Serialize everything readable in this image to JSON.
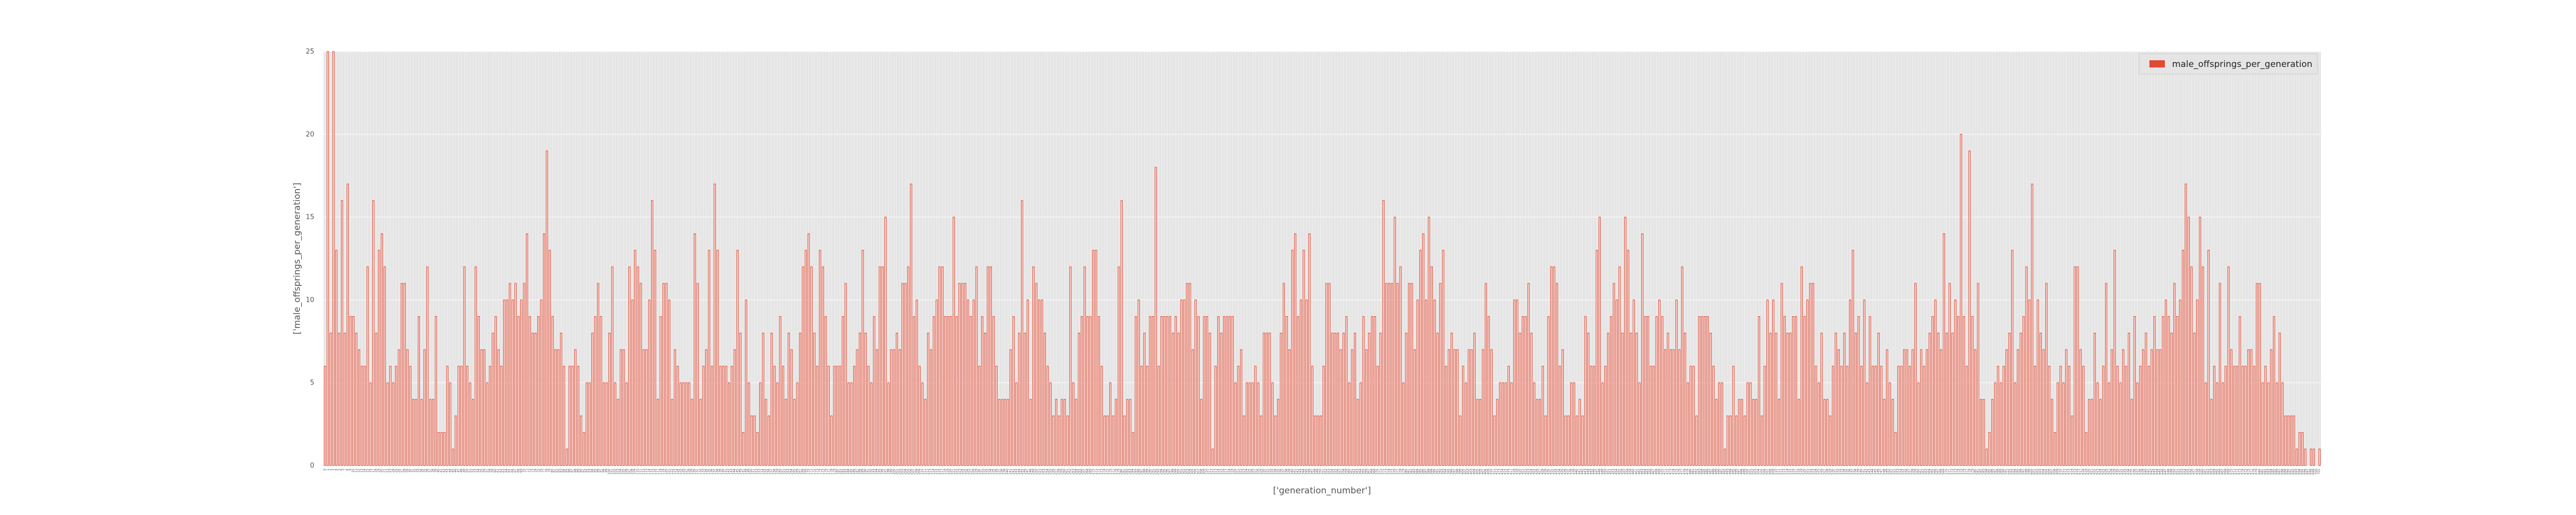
{
  "colors": {
    "bar_face": "#ffffff",
    "bar_edge": "#e24a33",
    "plot_bg": "#e5e5e5",
    "grid": "#ffffff",
    "legend_bg": "#e5e5e5"
  },
  "chart_data": {
    "type": "bar",
    "xlabel": "['generation_number']",
    "ylabel": "['male_offsprings_per_generation']",
    "ylim": [
      0,
      25
    ],
    "yticks": [
      0,
      5,
      10,
      15,
      20,
      25
    ],
    "grid": true,
    "legend_position": "top-right",
    "series": [
      {
        "name": "male_offsprings_per_generation",
        "color": "#e24a33",
        "values": [
          6,
          25,
          8,
          25,
          13,
          8,
          16,
          8,
          17,
          9,
          9,
          8,
          7,
          6,
          6,
          12,
          5,
          16,
          8,
          13,
          14,
          12,
          5,
          6,
          5,
          6,
          7,
          11,
          11,
          7,
          6,
          4,
          4,
          9,
          4,
          7,
          12,
          4,
          4,
          9,
          2,
          2,
          2,
          6,
          5,
          1,
          3,
          6,
          6,
          12,
          6,
          5,
          4,
          12,
          9,
          7,
          7,
          5,
          6,
          8,
          9,
          7,
          6,
          10,
          10,
          11,
          10,
          11,
          9,
          10,
          11,
          14,
          9,
          8,
          8,
          9,
          10,
          14,
          19,
          13,
          9,
          7,
          7,
          8,
          6,
          1,
          6,
          6,
          7,
          6,
          3,
          2,
          5,
          5,
          8,
          9,
          11,
          9,
          5,
          5,
          8,
          12,
          5,
          4,
          7,
          7,
          5,
          12,
          10,
          13,
          12,
          11,
          7,
          7,
          10,
          16,
          13,
          4,
          9,
          11,
          11,
          10,
          4,
          7,
          6,
          5,
          5,
          5,
          5,
          4,
          14,
          11,
          4,
          6,
          7,
          13,
          6,
          17,
          13,
          6,
          6,
          6,
          5,
          6,
          7,
          13,
          8,
          2,
          10,
          5,
          3,
          3,
          2,
          5,
          8,
          4,
          3,
          8,
          6,
          5,
          9,
          6,
          4,
          8,
          7,
          4,
          5,
          8,
          12,
          13,
          14,
          12,
          8,
          6,
          13,
          12,
          9,
          6,
          3,
          6,
          6,
          6,
          9,
          11,
          5,
          5,
          6,
          7,
          8,
          13,
          8,
          6,
          5,
          9,
          7,
          12,
          12,
          15,
          5,
          7,
          7,
          8,
          7,
          11,
          11,
          12,
          17,
          9,
          10,
          6,
          5,
          4,
          8,
          7,
          9,
          10,
          12,
          12,
          9,
          9,
          9,
          15,
          9,
          11,
          11,
          11,
          10,
          9,
          10,
          12,
          6,
          9,
          8,
          12,
          12,
          9,
          6,
          4,
          4,
          4,
          4,
          7,
          9,
          5,
          8,
          16,
          8,
          10,
          4,
          12,
          11,
          10,
          10,
          8,
          6,
          5,
          3,
          4,
          3,
          4,
          4,
          3,
          12,
          5,
          4,
          8,
          9,
          12,
          9,
          9,
          13,
          13,
          9,
          6,
          3,
          3,
          5,
          3,
          4,
          12,
          16,
          3,
          4,
          4,
          2,
          9,
          10,
          6,
          8,
          6,
          9,
          9,
          18,
          6,
          9,
          9,
          9,
          9,
          8,
          9,
          8,
          10,
          10,
          11,
          11,
          7,
          10,
          9,
          4,
          9,
          9,
          8,
          1,
          6,
          9,
          8,
          9,
          9,
          9,
          9,
          5,
          6,
          7,
          3,
          5,
          5,
          5,
          6,
          5,
          3,
          8,
          8,
          8,
          5,
          3,
          4,
          8,
          11,
          9,
          7,
          13,
          14,
          9,
          10,
          13,
          10,
          14,
          6,
          3,
          3,
          3,
          6,
          11,
          11,
          8,
          8,
          8,
          7,
          8,
          9,
          5,
          7,
          8,
          4,
          5,
          9,
          7,
          8,
          9,
          9,
          6,
          8,
          16,
          11,
          11,
          11,
          15,
          11,
          12,
          5,
          8,
          11,
          11,
          7,
          10,
          13,
          14,
          10,
          15,
          12,
          10,
          8,
          11,
          13,
          6,
          7,
          8,
          7,
          7,
          3,
          6,
          5,
          7,
          7,
          8,
          4,
          4,
          7,
          11,
          9,
          7,
          3,
          4,
          5,
          5,
          5,
          6,
          5,
          10,
          10,
          8,
          9,
          9,
          11,
          8,
          5,
          4,
          4,
          6,
          3,
          9,
          12,
          12,
          11,
          6,
          7,
          3,
          3,
          5,
          5,
          3,
          4,
          3,
          9,
          8,
          6,
          6,
          13,
          15,
          5,
          6,
          8,
          9,
          11,
          10,
          12,
          8,
          15,
          13,
          8,
          10,
          8,
          5,
          14,
          9,
          9,
          6,
          6,
          9,
          10,
          9,
          7,
          8,
          7,
          7,
          10,
          7,
          12,
          8,
          5,
          6,
          6,
          3,
          9,
          9,
          9,
          9,
          8,
          6,
          4,
          5,
          5,
          1,
          3,
          3,
          6,
          3,
          4,
          4,
          3,
          5,
          5,
          4,
          4,
          9,
          3,
          6,
          10,
          8,
          10,
          8,
          4,
          11,
          9,
          8,
          8,
          9,
          9,
          4,
          12,
          9,
          10,
          11,
          11,
          6,
          5,
          8,
          4,
          4,
          3,
          6,
          8,
          7,
          6,
          8,
          6,
          10,
          13,
          8,
          9,
          6,
          10,
          5,
          9,
          6,
          6,
          8,
          6,
          4,
          7,
          5,
          4,
          2,
          6,
          6,
          7,
          7,
          6,
          7,
          11,
          5,
          7,
          6,
          7,
          8,
          9,
          10,
          8,
          7,
          14,
          8,
          11,
          8,
          10,
          9,
          20,
          9,
          6,
          19,
          9,
          7,
          11,
          4,
          4,
          1,
          2,
          4,
          5,
          6,
          5,
          6,
          7,
          8,
          13,
          5,
          7,
          8,
          9,
          12,
          10,
          17,
          6,
          10,
          8,
          7,
          11,
          6,
          4,
          2,
          5,
          6,
          5,
          7,
          6,
          3,
          12,
          12,
          7,
          6,
          2,
          4,
          4,
          8,
          5,
          4,
          6,
          11,
          5,
          7,
          13,
          6,
          5,
          7,
          6,
          8,
          4,
          9,
          5,
          6,
          7,
          8,
          6,
          7,
          9,
          7,
          7,
          9,
          10,
          9,
          8,
          11,
          9,
          10,
          13,
          17,
          15,
          12,
          8,
          10,
          15,
          12,
          5,
          13,
          4,
          6,
          5,
          11,
          5,
          6,
          12,
          7,
          6,
          6,
          9,
          6,
          6,
          7,
          7,
          6,
          11,
          11,
          5,
          6,
          5,
          7,
          9,
          5,
          8,
          5,
          3,
          3,
          3,
          3,
          1,
          2,
          2,
          1,
          0,
          1,
          1,
          0,
          1
        ]
      }
    ]
  }
}
